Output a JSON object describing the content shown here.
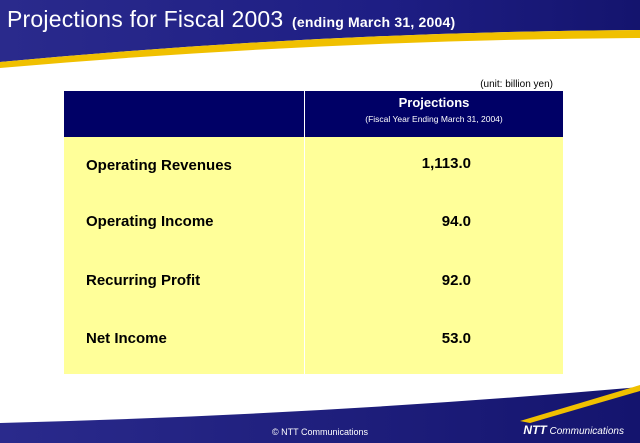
{
  "slide": {
    "title": "Projections for Fiscal 2003",
    "subtitle": "(ending March 31, 2004)"
  },
  "unit_note": "(unit: billion yen)",
  "table": {
    "header_main": "Projections",
    "header_sub": "(Fiscal Year Ending March 31, 2004)",
    "rows": [
      {
        "label": "Operating Revenues",
        "value": "1,113.0"
      },
      {
        "label": "Operating Income",
        "value": "94.0"
      },
      {
        "label": "Recurring Profit",
        "value": "92.0"
      },
      {
        "label": "Net Income",
        "value": "53.0"
      }
    ]
  },
  "footer": {
    "copyright": "© NTT Communications",
    "logo_ntt": "NTT",
    "logo_comm": "Communications"
  },
  "colors": {
    "navy": "#1a1a80",
    "table_header": "#000066",
    "table_body": "#ffff99",
    "accent_gold": "#f0c000"
  }
}
